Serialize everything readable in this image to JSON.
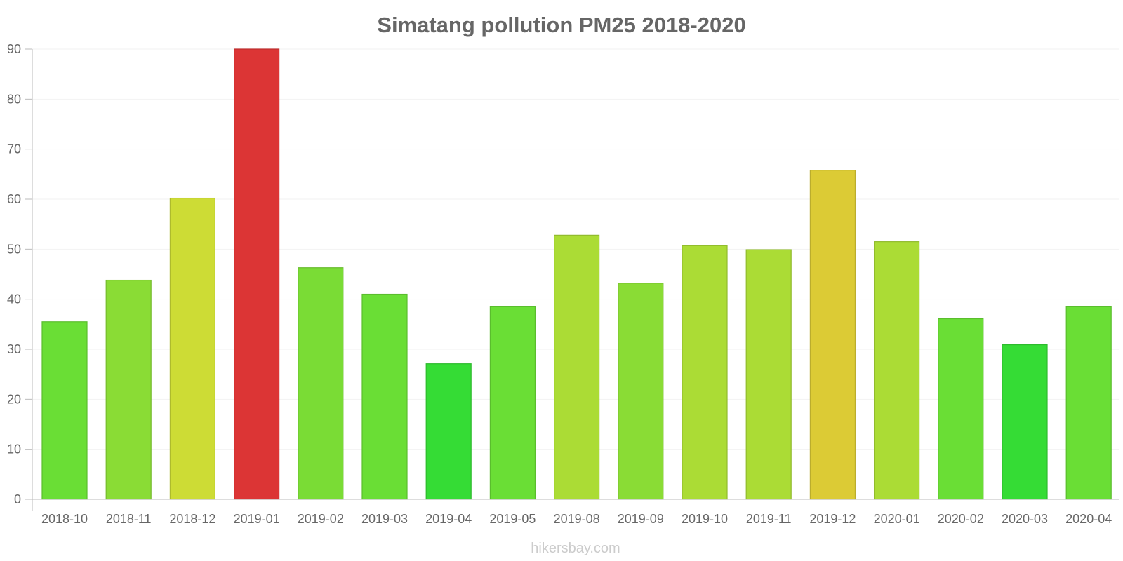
{
  "chart_data": {
    "type": "bar",
    "title": "Simatang pollution PM25 2018-2020",
    "xlabel": "",
    "ylabel": "",
    "ylim": [
      0,
      90
    ],
    "yticks": [
      0,
      10,
      20,
      30,
      40,
      50,
      60,
      70,
      80,
      90
    ],
    "categories": [
      "2018-10",
      "2018-11",
      "2018-12",
      "2019-01",
      "2019-02",
      "2019-03",
      "2019-04",
      "2019-05",
      "2019-08",
      "2019-09",
      "2019-10",
      "2019-11",
      "2019-12",
      "2020-01",
      "2020-02",
      "2020-03",
      "2020-04"
    ],
    "values": [
      35.5,
      43.8,
      60.2,
      90,
      46.3,
      41,
      27.1,
      38.5,
      52.8,
      43.2,
      50.7,
      49.9,
      65.8,
      51.5,
      36.1,
      30.9,
      38.5
    ],
    "bar_colors": [
      "#6ADE35",
      "#8ADC35",
      "#CDDC35",
      "#DC3535",
      "#7ADC35",
      "#6ADE35",
      "#35DC35",
      "#6ADE35",
      "#ABDC35",
      "#8ADC35",
      "#ABDC35",
      "#ABDC35",
      "#DCCB35",
      "#ABDC35",
      "#6ADE35",
      "#35DC35",
      "#6ADE35"
    ],
    "grid": true,
    "legend": "none"
  },
  "watermark": "hikersbay.com"
}
